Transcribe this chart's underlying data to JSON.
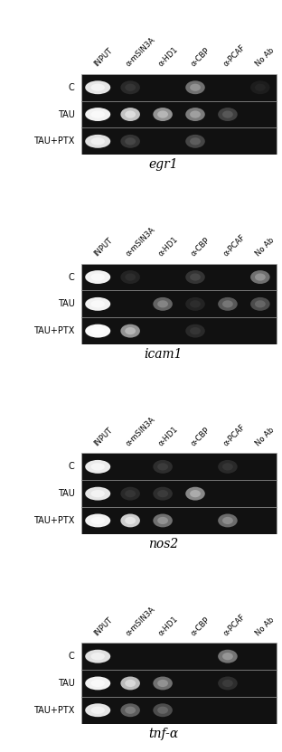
{
  "panels": [
    {
      "gene": "egr1",
      "band_data": {
        "C": [
          0.9,
          0.1,
          0,
          0.4,
          0,
          0.05
        ],
        "TAU": [
          0.95,
          0.75,
          0.55,
          0.45,
          0.2,
          0
        ],
        "TAU+PTX": [
          0.88,
          0.15,
          0,
          0.22,
          0,
          0
        ]
      }
    },
    {
      "gene": "icam1",
      "band_data": {
        "C": [
          0.95,
          0.08,
          0,
          0.15,
          0,
          0.4
        ],
        "TAU": [
          0.95,
          0,
          0.35,
          0.08,
          0.3,
          0.25
        ],
        "TAU+PTX": [
          0.98,
          0.55,
          0,
          0.1,
          0,
          0
        ]
      }
    },
    {
      "gene": "nos2",
      "band_data": {
        "C": [
          0.92,
          0,
          0.12,
          0,
          0.1,
          0
        ],
        "TAU": [
          0.9,
          0.1,
          0.12,
          0.5,
          0,
          0
        ],
        "TAU+PTX": [
          0.95,
          0.8,
          0.4,
          0,
          0.38,
          0
        ]
      }
    },
    {
      "gene": "tnf-α",
      "band_data": {
        "C": [
          0.88,
          0,
          0,
          0,
          0.42,
          0
        ],
        "TAU": [
          0.95,
          0.72,
          0.4,
          0,
          0.12,
          0
        ],
        "TAU+PTX": [
          0.9,
          0.32,
          0.25,
          0,
          0,
          0
        ]
      }
    }
  ],
  "col_labels": [
    "INPUT",
    "α-mSIN3A",
    "α-HD1",
    "α-CBP",
    "α-PCAF",
    "No Ab"
  ],
  "row_labels": [
    "C",
    "TAU",
    "TAU+PTX"
  ],
  "bg_color": [
    0.07,
    0.07,
    0.07
  ],
  "band_color": [
    1.0,
    1.0,
    1.0
  ],
  "fig_bg": "#f0f0f0",
  "gel_bg": "#111111"
}
